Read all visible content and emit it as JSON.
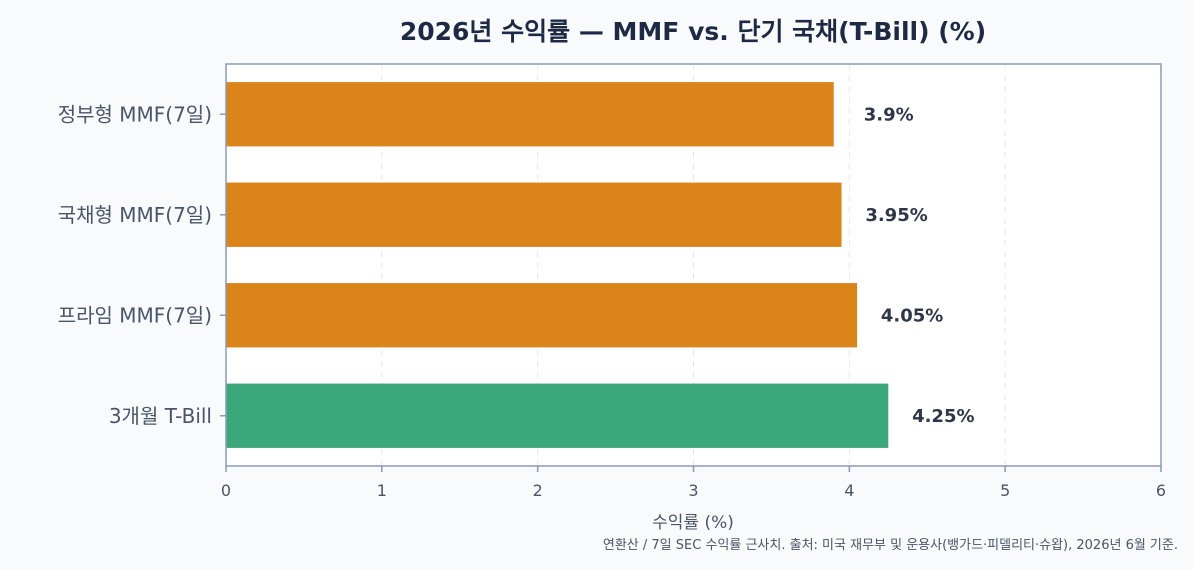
{
  "chart_data": {
    "type": "bar",
    "orientation": "horizontal",
    "title": "2026년 수익률 — MMF vs. 단기 국채(T-Bill) (%)",
    "xlabel": "수익률 (%)",
    "ylabel": "",
    "categories": [
      "정부형 MMF(7일)",
      "국채형 MMF(7일)",
      "프라임 MMF(7일)",
      "3개월 T-Bill"
    ],
    "values": [
      3.9,
      3.95,
      4.05,
      4.25
    ],
    "value_labels": [
      "3.9%",
      "3.95%",
      "4.05%",
      "4.25%"
    ],
    "bar_colors": [
      "#db841a",
      "#db841a",
      "#db841a",
      "#3ba77a"
    ],
    "xlim": [
      0,
      6
    ],
    "xticks": [
      "0",
      "1",
      "2",
      "3",
      "4",
      "5",
      "6"
    ],
    "grid": "vertical dashed",
    "footnote": "연환산 / 7일 SEC 수익률 근사치. 출처: 미국 재무부 및 운용사(뱅가드·피델리티·슈왑), 2026년 6월 기준."
  },
  "colors": {
    "background": "#f8fafc",
    "plot_background": "#ffffff",
    "axis": "#8a9bb5",
    "grid": "#e2e8f0"
  }
}
